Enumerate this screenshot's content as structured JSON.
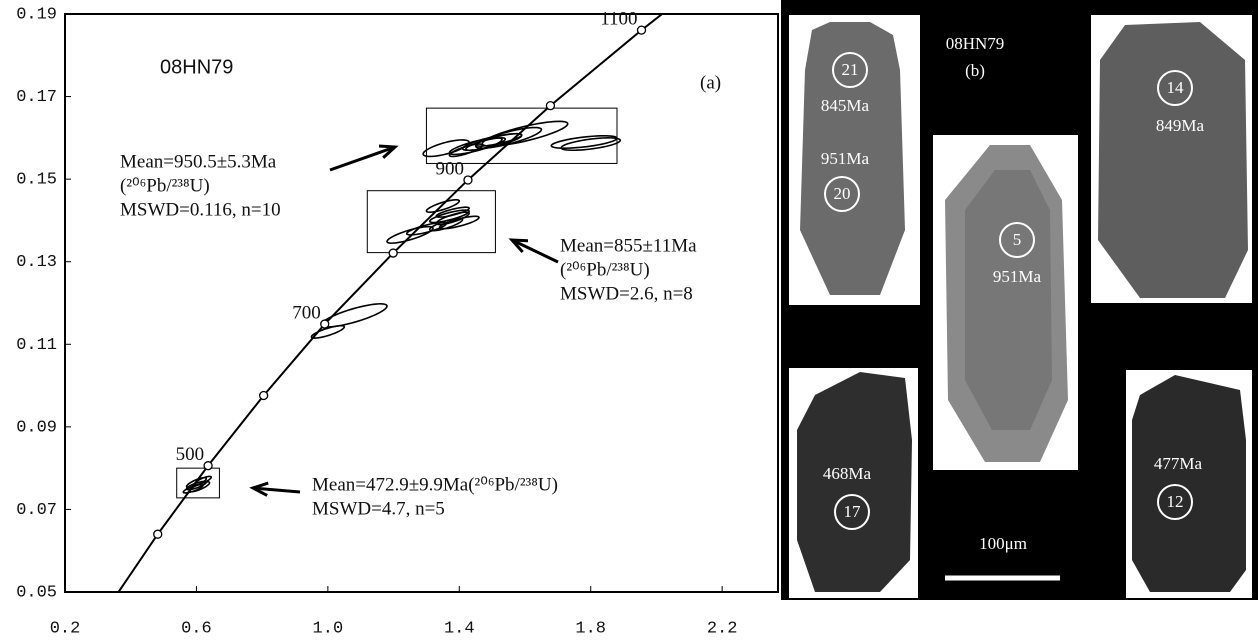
{
  "chart_data": {
    "type": "concordia",
    "sample": "08HN79",
    "panel_label": "(a)",
    "xlim": [
      0.2,
      2.37
    ],
    "ylim": [
      0.05,
      0.19
    ],
    "xticks": [
      0.2,
      0.6,
      {
        "value": 1,
        "label": "1.0"
      },
      1.4,
      1.8,
      2.2
    ],
    "yticks": [
      0.19,
      0.17,
      0.15,
      0.13,
      0.11,
      0.09,
      0.07,
      0.05
    ],
    "curve": {
      "x": [
        0.3637,
        0.4822,
        0.6355,
        0.8046,
        0.9905,
        1.1988,
        1.4264,
        1.6774,
        1.9546,
        2.043
      ],
      "y": [
        0.0501,
        0.064,
        0.0806,
        0.0976,
        0.1149,
        0.1321,
        0.1498,
        0.1678,
        0.1861,
        0.1916
      ]
    },
    "points": {
      "x": [
        0.4822,
        0.6355,
        0.8046,
        0.9905,
        1.1988,
        1.4264,
        1.6774,
        1.9546
      ],
      "y": [
        0.064,
        0.0806,
        0.0976,
        0.1149,
        0.1321,
        0.1498,
        0.1678,
        0.1861
      ],
      "labels": [
        null,
        "500",
        null,
        "700",
        null,
        "900",
        null,
        "1100"
      ]
    },
    "ellipses": {
      "x": [
        1.36,
        1.45,
        1.5,
        1.55,
        1.6,
        1.78,
        1.8,
        1.48,
        1.42,
        1.52,
        1.35,
        1.37,
        1.38,
        1.4,
        1.36,
        1.3,
        1.25,
        1.38,
        1.08,
        1.0,
        0.6,
        0.61,
        0.59,
        0.62,
        0.6
      ],
      "y": [
        0.1575,
        0.158,
        0.159,
        0.16,
        0.161,
        0.159,
        0.1585,
        0.1585,
        0.157,
        0.1595,
        0.1435,
        0.141,
        0.1405,
        0.1395,
        0.139,
        0.138,
        0.1365,
        0.142,
        0.117,
        0.113,
        0.0765,
        0.0755,
        0.075,
        0.077,
        0.0758
      ],
      "sx": [
        0.07,
        0.08,
        0.09,
        0.1,
        0.13,
        0.1,
        0.09,
        0.06,
        0.05,
        0.07,
        0.05,
        0.06,
        0.05,
        0.06,
        0.05,
        0.06,
        0.07,
        0.05,
        0.1,
        0.05,
        0.03,
        0.03,
        0.03,
        0.025,
        0.03
      ],
      "sy": [
        0.002,
        0.002,
        0.002,
        0.0025,
        0.003,
        0.0015,
        0.0015,
        0.0015,
        0.0015,
        0.0015,
        0.0015,
        0.0015,
        0.0015,
        0.0015,
        0.0015,
        0.0015,
        0.002,
        0.0012,
        0.0028,
        0.0015,
        0.0012,
        0.0012,
        0.001,
        0.001,
        0.001
      ],
      "rho": [
        0.7,
        0.8,
        0.8,
        0.8,
        0.8,
        0.6,
        0.6,
        0.8,
        0.8,
        0.8,
        0.8,
        0.8,
        0.8,
        0.8,
        0.8,
        0.8,
        0.8,
        0.8,
        0.8,
        0.8,
        0.8,
        0.8,
        0.8,
        0.8,
        0.8
      ]
    },
    "boxes": [
      {
        "x": [
          1.3,
          1.88
        ],
        "y": [
          0.1538,
          0.1672
        ]
      },
      {
        "x": [
          1.12,
          1.51
        ],
        "y": [
          0.1322,
          0.1472
        ]
      },
      {
        "x": [
          0.54,
          0.67
        ],
        "y": [
          0.0728,
          0.08
        ]
      }
    ],
    "annotations": [
      {
        "lines": [
          "Mean=950.5±5.3Ma",
          "(²⁰⁶Pb/²³⁸U)",
          "MSWD=0.116, n=10"
        ]
      },
      {
        "lines": [
          "Mean=855±11Ma",
          "(²⁰⁶Pb/²³⁸U)",
          "MSWD=2.6, n=8"
        ]
      },
      {
        "lines": [
          "Mean=472.9±9.9Ma(²⁰⁶Pb/²³⁸U)",
          "MSWD=4.7, n=5"
        ]
      }
    ]
  },
  "panel_b": {
    "sample": "08HN79",
    "label": "(b)",
    "scale": "100μm",
    "spots": [
      {
        "number": "21",
        "age": "845Ma"
      },
      {
        "number": "20",
        "age": "951Ma"
      },
      {
        "number": "5",
        "age": "951Ma"
      },
      {
        "number": "14",
        "age": "849Ma"
      },
      {
        "number": "17",
        "age": "468Ma"
      },
      {
        "number": "12",
        "age": "477Ma"
      }
    ]
  }
}
